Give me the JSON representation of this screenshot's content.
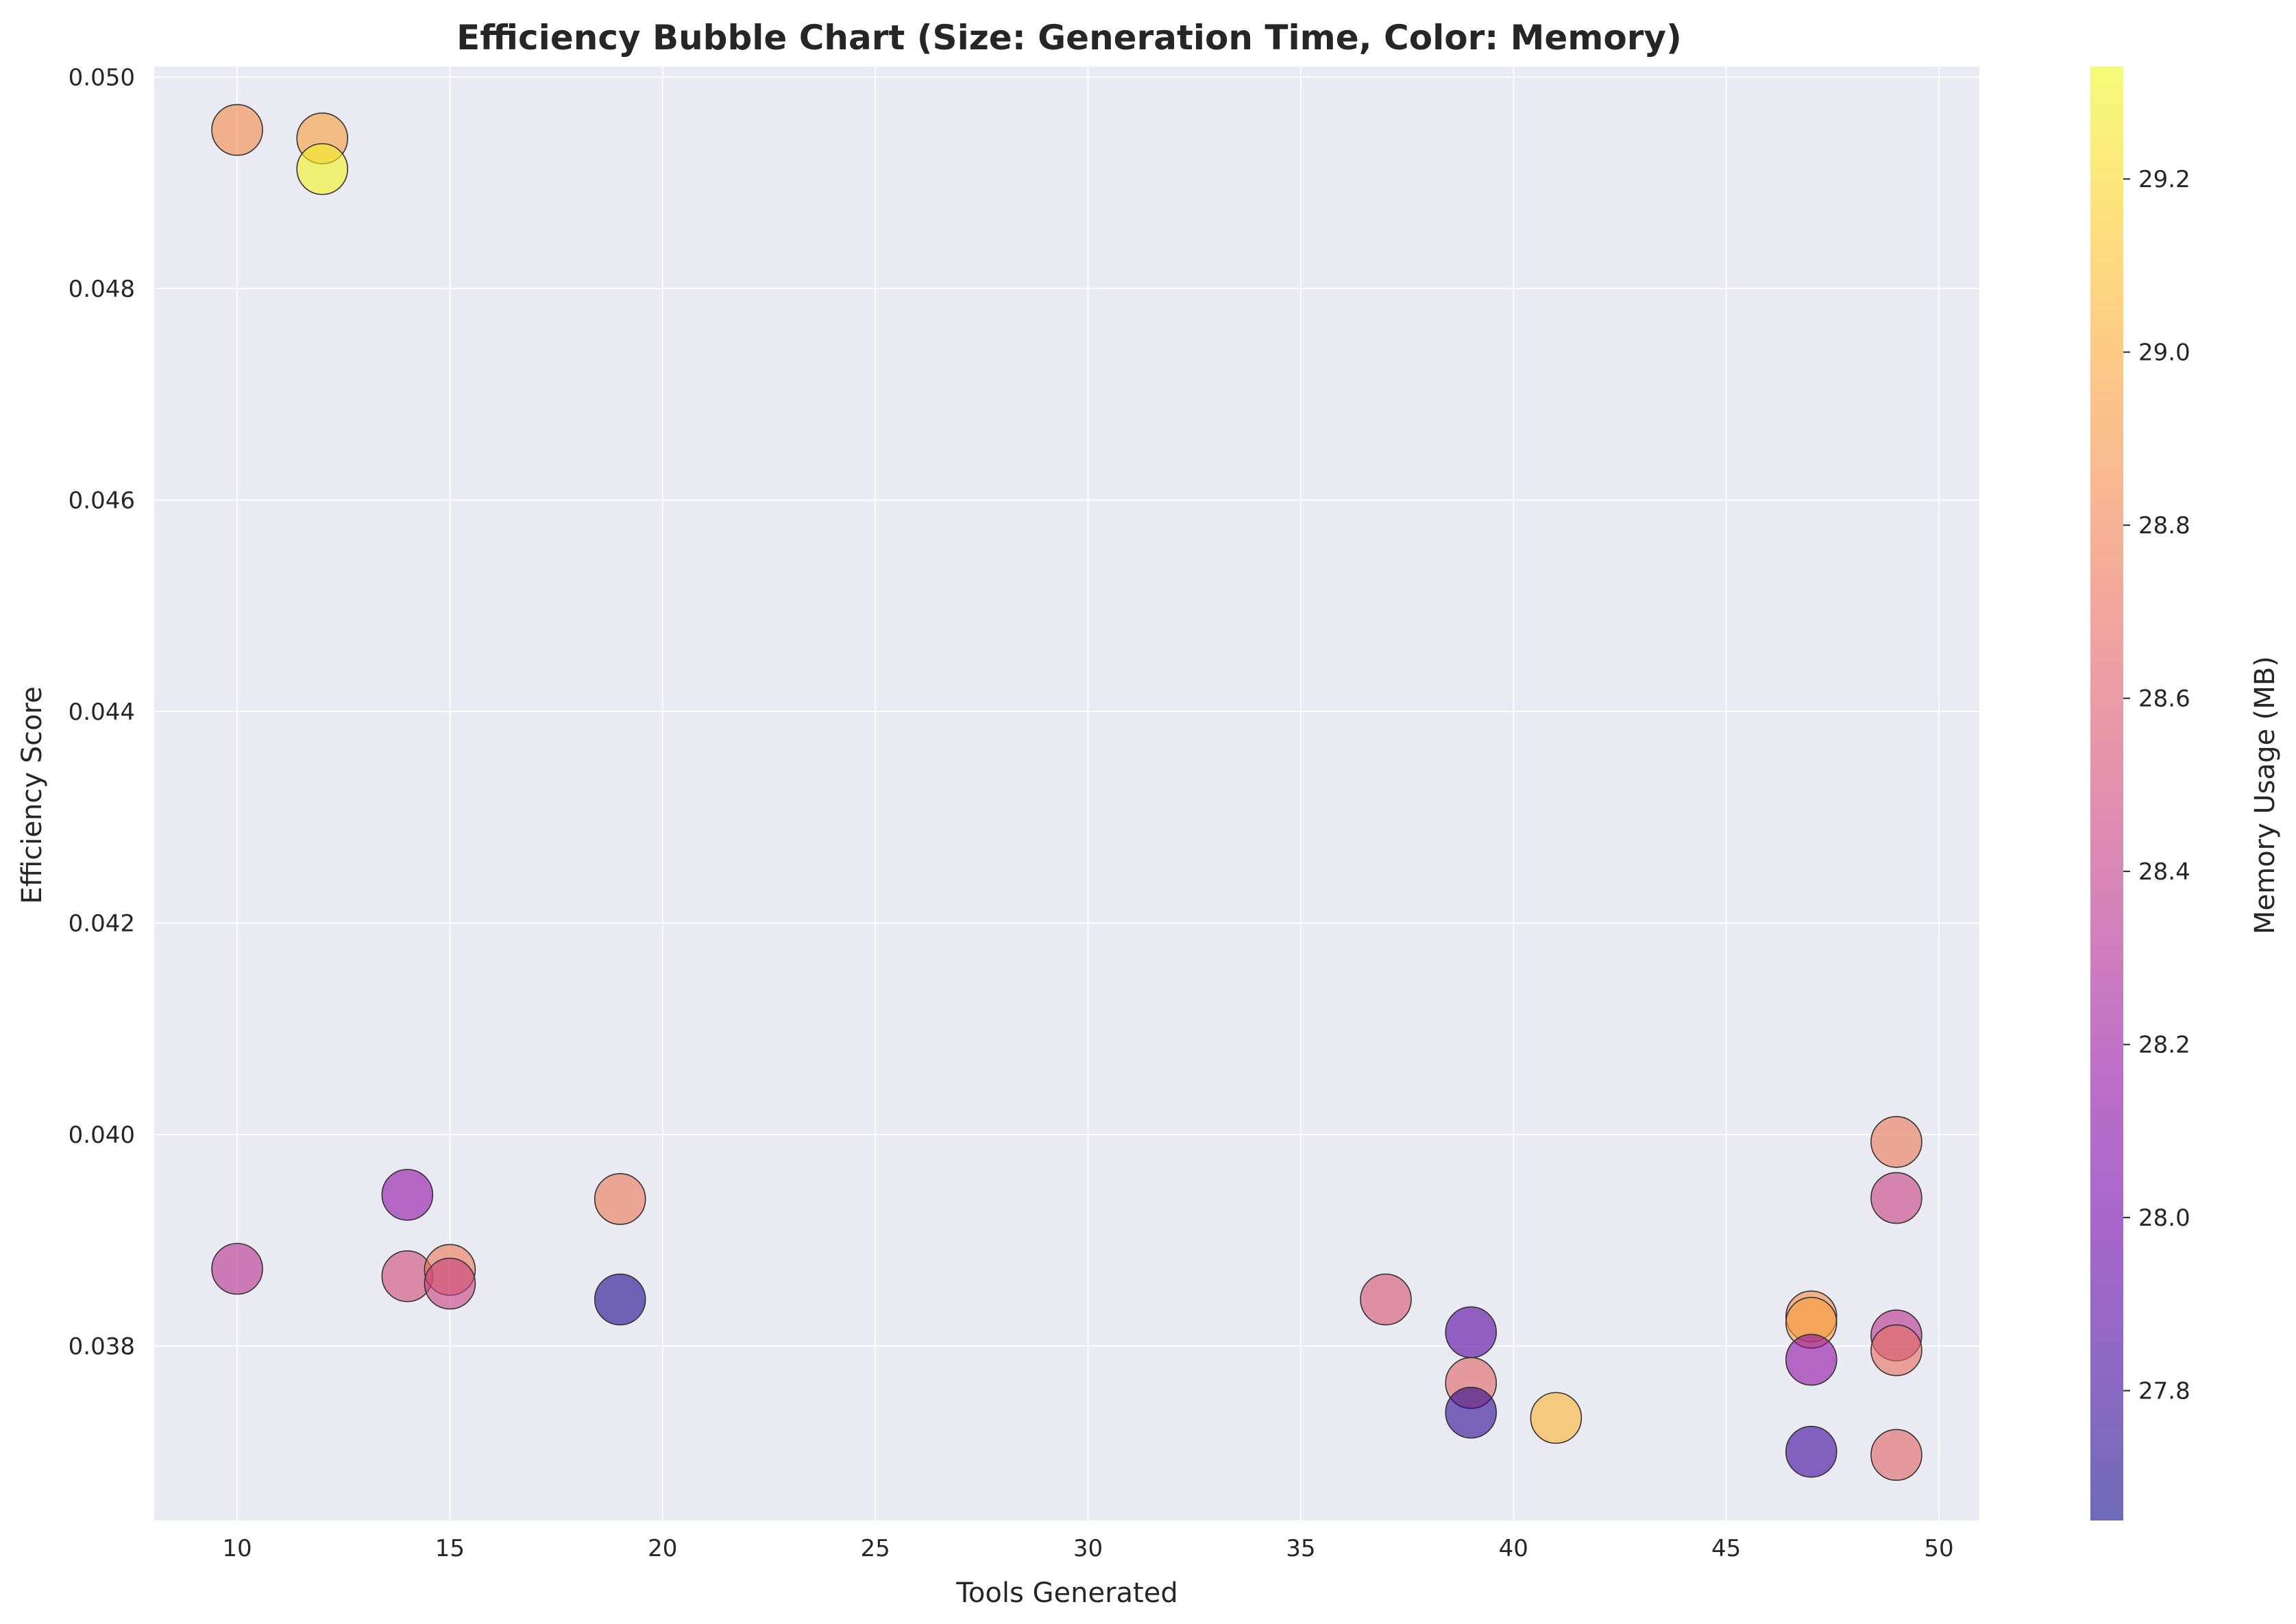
{
  "chart_data": {
    "type": "scatter",
    "title": "Efficiency Bubble Chart (Size: Generation Time, Color: Memory)",
    "xlabel": "Tools Generated",
    "ylabel": "Efficiency Score",
    "colorbar_label": "Memory Usage (MB)",
    "xlim": [
      8.05,
      50.95
    ],
    "ylim": [
      0.03635,
      0.0501
    ],
    "xticks": [
      10,
      15,
      20,
      25,
      30,
      35,
      40,
      45,
      50
    ],
    "yticks": [
      0.038,
      0.04,
      0.042,
      0.044,
      0.046,
      0.048,
      0.05
    ],
    "colorbar_range": [
      27.65,
      29.33
    ],
    "colorbar_ticks": [
      27.8,
      28.0,
      28.2,
      28.4,
      28.6,
      28.8,
      29.0,
      29.2
    ],
    "colormap": "plasma",
    "grid": true,
    "points": [
      {
        "x": 10,
        "y": 0.0495,
        "memory": 28.85
      },
      {
        "x": 12,
        "y": 0.04942,
        "memory": 28.95
      },
      {
        "x": 12,
        "y": 0.04913,
        "memory": 29.3
      },
      {
        "x": 10,
        "y": 0.03873,
        "memory": 28.35
      },
      {
        "x": 14,
        "y": 0.03943,
        "memory": 28.15
      },
      {
        "x": 14,
        "y": 0.03866,
        "memory": 28.5
      },
      {
        "x": 15,
        "y": 0.03872,
        "memory": 28.75
      },
      {
        "x": 15,
        "y": 0.03859,
        "memory": 28.45
      },
      {
        "x": 19,
        "y": 0.03939,
        "memory": 28.75
      },
      {
        "x": 19,
        "y": 0.03844,
        "memory": 27.7
      },
      {
        "x": 37,
        "y": 0.03844,
        "memory": 28.55
      },
      {
        "x": 39,
        "y": 0.03813,
        "memory": 27.9
      },
      {
        "x": 39,
        "y": 0.03765,
        "memory": 28.65
      },
      {
        "x": 39,
        "y": 0.03737,
        "memory": 27.75
      },
      {
        "x": 41,
        "y": 0.03732,
        "memory": 29.05
      },
      {
        "x": 47,
        "y": 0.03828,
        "memory": 28.85
      },
      {
        "x": 47,
        "y": 0.03822,
        "memory": 28.95
      },
      {
        "x": 47,
        "y": 0.03787,
        "memory": 28.15
      },
      {
        "x": 47,
        "y": 0.037,
        "memory": 27.8
      },
      {
        "x": 49,
        "y": 0.03993,
        "memory": 28.75
      },
      {
        "x": 49,
        "y": 0.0394,
        "memory": 28.45
      },
      {
        "x": 49,
        "y": 0.0381,
        "memory": 28.35
      },
      {
        "x": 49,
        "y": 0.03796,
        "memory": 28.7
      },
      {
        "x": 49,
        "y": 0.03697,
        "memory": 28.65
      }
    ]
  },
  "colors": {
    "plot_background": "#eaeaf2",
    "grid": "#ffffff",
    "text": "#262626"
  }
}
